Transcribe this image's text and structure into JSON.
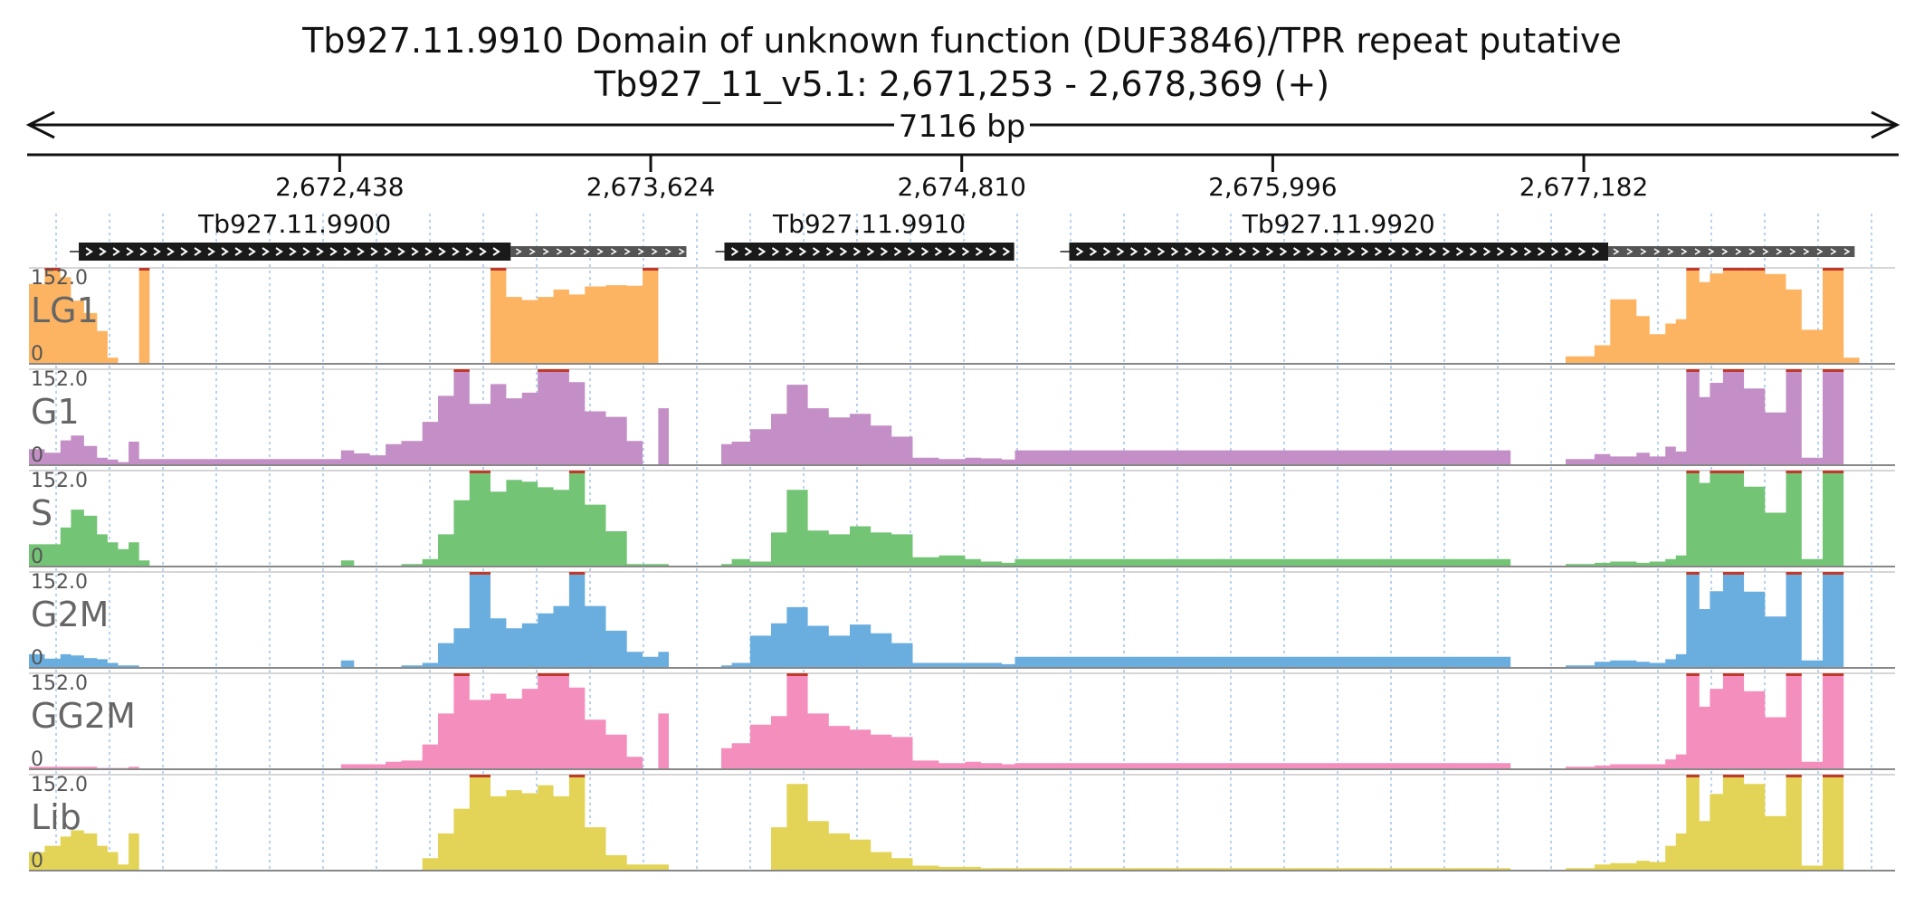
{
  "header": {
    "line1": "Tb927.11.9910  Domain of unknown function (DUF3846)/TPR repeat  putative",
    "line2": "Tb927_11_v5.1: 2,671,253 - 2,678,369 (+)",
    "span_label": "7116 bp"
  },
  "chart_data": {
    "type": "area",
    "region": {
      "chrom": "Tb927_11_v5.1",
      "start": 2671253,
      "end": 2678369,
      "strand": "+"
    },
    "xlim": [
      2671253,
      2678369
    ],
    "ticks": [
      {
        "pos": 2672438,
        "label": "2,672,438"
      },
      {
        "pos": 2673624,
        "label": "2,673,624"
      },
      {
        "pos": 2674810,
        "label": "2,674,810"
      },
      {
        "pos": 2675996,
        "label": "2,675,996"
      },
      {
        "pos": 2677182,
        "label": "2,677,182"
      }
    ],
    "genes": [
      {
        "name": "Tb927.11.9900",
        "start": 2671443,
        "cds_end": 2673090,
        "end": 2673760
      },
      {
        "name": "Tb927.11.9910",
        "start": 2673905,
        "cds_end": 2675010,
        "end": 2675010
      },
      {
        "name": "Tb927.11.9920",
        "start": 2675220,
        "cds_end": 2677275,
        "end": 2678215
      }
    ],
    "ylim": [
      0,
      152.0
    ],
    "ymax_label": "152.0",
    "ymin_label": "0",
    "x": [
      2671253,
      2671313,
      2671373,
      2671413,
      2671463,
      2671513,
      2671553,
      2671593,
      2671633,
      2671673,
      2671713,
      2672443,
      2672493,
      2672553,
      2672613,
      2672673,
      2672753,
      2672813,
      2672873,
      2672933,
      2673013,
      2673073,
      2673133,
      2673193,
      2673253,
      2673313,
      2673373,
      2673453,
      2673533,
      2673593,
      2673653,
      2673693,
      2673743,
      2673893,
      2673933,
      2674003,
      2674083,
      2674143,
      2674223,
      2674303,
      2674383,
      2674463,
      2674543,
      2674623,
      2674723,
      2674823,
      2674883,
      2674963,
      2675013,
      2676903,
      2677013,
      2677113,
      2677223,
      2677283,
      2677383,
      2677433,
      2677493,
      2677533,
      2677573,
      2677623,
      2677663,
      2677713,
      2677793,
      2677873,
      2677953,
      2678013,
      2678093,
      2678173,
      2678233,
      2678293,
      2678369
    ],
    "series": [
      {
        "name": "LG1",
        "color": "#fdb462",
        "values": [
          129,
          152,
          140,
          102,
          82,
          53,
          10,
          0,
          0,
          152,
          0,
          0,
          0,
          0,
          0,
          0,
          0,
          0,
          0,
          0,
          152,
          108,
          103,
          108,
          120,
          112,
          125,
          127,
          126,
          152,
          0,
          0,
          0,
          0,
          0,
          0,
          0,
          0,
          0,
          0,
          0,
          0,
          0,
          0,
          0,
          0,
          0,
          0,
          0,
          0,
          0,
          12,
          30,
          104,
          77,
          48,
          65,
          72,
          152,
          132,
          146,
          152,
          152,
          145,
          120,
          55,
          152,
          10,
          0,
          0,
          0
        ]
      },
      {
        "name": "G1",
        "color": "#c38fc6",
        "values": [
          26,
          20,
          40,
          48,
          31,
          12,
          9,
          5,
          38,
          10,
          10,
          24,
          19,
          16,
          34,
          39,
          70,
          112,
          152,
          99,
          131,
          108,
          117,
          152,
          152,
          134,
          87,
          78,
          39,
          0,
          92,
          0,
          0,
          34,
          38,
          58,
          83,
          130,
          92,
          77,
          83,
          64,
          46,
          12,
          10,
          12,
          11,
          9,
          24,
          0,
          0,
          10,
          18,
          14,
          20,
          14,
          30,
          22,
          152,
          110,
          133,
          152,
          124,
          85,
          152,
          12,
          152,
          0,
          0,
          0,
          0
        ]
      },
      {
        "name": "S",
        "color": "#74c476",
        "values": [
          36,
          36,
          63,
          92,
          82,
          52,
          39,
          28,
          39,
          10,
          0,
          10,
          0,
          0,
          0,
          4,
          12,
          52,
          107,
          152,
          121,
          140,
          137,
          128,
          124,
          152,
          100,
          57,
          4,
          4,
          4,
          0,
          0,
          4,
          12,
          8,
          55,
          124,
          58,
          52,
          65,
          55,
          52,
          15,
          18,
          12,
          8,
          6,
          12,
          0,
          0,
          4,
          6,
          8,
          6,
          8,
          12,
          18,
          152,
          135,
          152,
          152,
          129,
          87,
          152,
          12,
          152,
          0,
          0,
          0,
          0
        ]
      },
      {
        "name": "G2M",
        "color": "#6aaee0",
        "values": [
          22,
          15,
          22,
          20,
          16,
          14,
          8,
          4,
          4,
          0,
          0,
          12,
          0,
          0,
          0,
          4,
          8,
          40,
          64,
          152,
          80,
          64,
          72,
          88,
          100,
          152,
          100,
          60,
          26,
          18,
          26,
          0,
          0,
          4,
          8,
          52,
          72,
          98,
          68,
          52,
          70,
          56,
          40,
          8,
          8,
          8,
          8,
          6,
          18,
          0,
          0,
          4,
          10,
          12,
          10,
          8,
          14,
          22,
          152,
          95,
          124,
          152,
          123,
          83,
          152,
          12,
          152,
          0,
          0,
          0,
          0
        ]
      },
      {
        "name": "GG2M",
        "color": "#f48ebd",
        "values": [
          4,
          4,
          4,
          4,
          4,
          2,
          2,
          2,
          4,
          0,
          0,
          8,
          8,
          8,
          12,
          14,
          40,
          90,
          152,
          112,
          122,
          114,
          130,
          152,
          152,
          132,
          80,
          56,
          20,
          0,
          90,
          0,
          0,
          34,
          42,
          72,
          86,
          152,
          90,
          70,
          64,
          56,
          52,
          14,
          10,
          12,
          10,
          8,
          10,
          0,
          0,
          4,
          6,
          8,
          8,
          8,
          16,
          24,
          152,
          101,
          130,
          152,
          126,
          84,
          152,
          12,
          152,
          0,
          0,
          0,
          0
        ]
      },
      {
        "name": "Lib",
        "color": "#e3d356",
        "values": [
          30,
          40,
          55,
          65,
          60,
          40,
          30,
          10,
          60,
          0,
          0,
          0,
          0,
          0,
          0,
          0,
          20,
          60,
          100,
          152,
          120,
          130,
          125,
          138,
          120,
          152,
          70,
          25,
          10,
          10,
          10,
          0,
          0,
          0,
          0,
          0,
          70,
          140,
          80,
          60,
          50,
          30,
          20,
          8,
          6,
          6,
          4,
          4,
          4,
          0,
          0,
          4,
          10,
          12,
          16,
          14,
          40,
          60,
          152,
          80,
          124,
          152,
          140,
          88,
          152,
          8,
          152,
          0,
          0,
          0,
          0
        ]
      }
    ]
  }
}
